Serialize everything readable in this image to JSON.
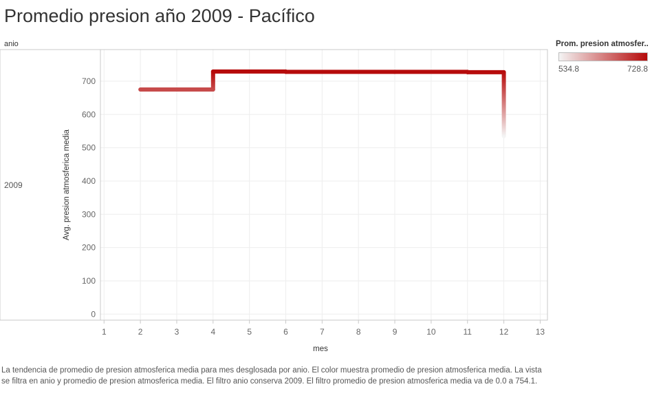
{
  "title": "Promedio presion año 2009 - Pacífico",
  "row_header": "anio",
  "legend": {
    "title": "Prom. presion atmosfer..",
    "min_label": "534.8",
    "max_label": "728.8",
    "min": 534.8,
    "max": 728.8,
    "color_low": "#f4f4f4",
    "color_high": "#b60a0a"
  },
  "caption": "La tendencia de promedio de presion atmosferica media para mes desglosada por anio.  El color muestra promedio de presion atmosferica media. La vista se filtra en anio y promedio de presion atmosferica media. El filtro anio conserva 2009. El filtro promedio de presion atmosferica media va de 0.0 a 754.1.",
  "chart_data": {
    "type": "line",
    "line_style": "step",
    "title": "Promedio presion año 2009 - Pacífico",
    "xlabel": "mes",
    "ylabel": "Avg. presion atmosferica media",
    "row_label": "2009",
    "x_ticks": [
      1,
      2,
      3,
      4,
      5,
      6,
      7,
      8,
      9,
      10,
      11,
      12,
      13
    ],
    "y_ticks": [
      0,
      100,
      200,
      300,
      400,
      500,
      600,
      700
    ],
    "xlim": [
      0.9,
      13.2
    ],
    "ylim": [
      -18,
      795
    ],
    "grid": true,
    "x": [
      2,
      4,
      6,
      9,
      11,
      12,
      12
    ],
    "values": [
      675,
      729,
      728,
      728,
      727,
      727,
      534.8
    ],
    "legend_placement": "top-right"
  }
}
